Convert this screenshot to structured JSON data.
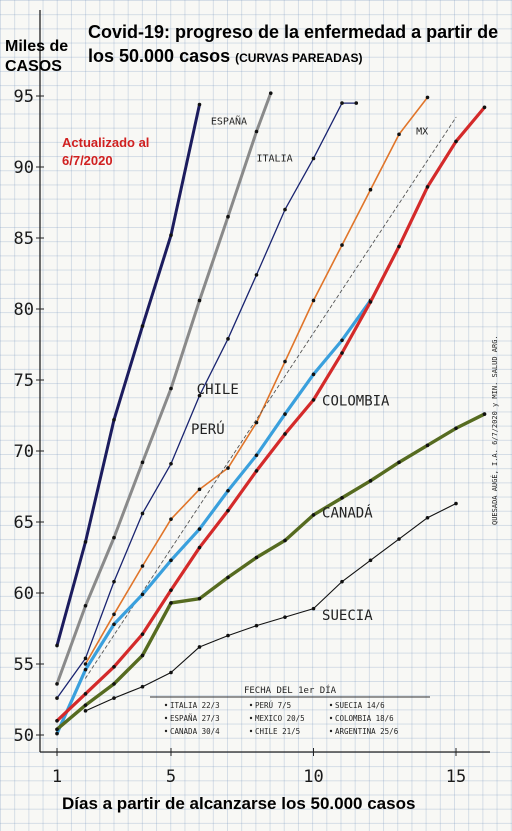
{
  "title": {
    "main": "Covid-19: progreso de la enfermedad a partir de los 50.000 casos",
    "note": "(CURVAS PAREADAS)"
  },
  "y_axis_label": "Miles de CASOS",
  "x_axis_label": "Días a partir de alcanzarse los 50.000 casos",
  "updated": "Actualizado al 6/7/2020",
  "author_note": "QUESADA AUGÉ, I.A. 6/7/2020 y MIN. SALUD ARG.",
  "legend_title": "FECHA DEL 1er DÍA",
  "legend_entries": [
    "ITALIA 22/3",
    "PERÚ 7/5",
    "SUECIA 14/6",
    "ESPAÑA 27/3",
    "MEXICO 20/5",
    "COLOMBIA 18/6",
    "CANADA 30/4",
    "CHILE 21/5",
    "ARGENTINA 25/6"
  ],
  "chart_data": {
    "type": "line",
    "title": "Covid-19: progreso de la enfermedad a partir de los 50.000 casos",
    "xlabel": "Días a partir de alcanzarse los 50.000 casos",
    "ylabel": "Miles de CASOS",
    "x_ticks": [
      1,
      5,
      10,
      15
    ],
    "y_ticks": [
      50,
      55,
      60,
      65,
      70,
      75,
      80,
      85,
      90,
      95
    ],
    "xlim": [
      1,
      16
    ],
    "ylim": [
      50,
      95
    ],
    "grid": true,
    "series": [
      {
        "name": "ESPAÑA",
        "color": "#1c1c5e",
        "x": [
          1,
          2,
          3,
          4,
          5,
          6
        ],
        "y": [
          56.3,
          63.6,
          72.2,
          78.8,
          85.2,
          94.4
        ]
      },
      {
        "name": "ITALIA",
        "color": "#8a8a8a",
        "x": [
          1,
          2,
          3,
          4,
          5,
          6,
          7,
          8,
          8.5
        ],
        "y": [
          53.6,
          59.1,
          63.9,
          69.2,
          74.4,
          80.6,
          86.5,
          92.5,
          95.2
        ]
      },
      {
        "name": "CHILE",
        "color": "#1a2470",
        "x": [
          1,
          2,
          3,
          4,
          5,
          6,
          7,
          8,
          9,
          10,
          11,
          11.5
        ],
        "y": [
          52.6,
          55.4,
          60.8,
          65.6,
          69.1,
          73.9,
          77.9,
          82.4,
          87.0,
          90.6,
          94.5,
          94.5
        ]
      },
      {
        "name": "PERÚ",
        "color": "#e0752a",
        "x": [
          2,
          3,
          4,
          5,
          6,
          7,
          8,
          9,
          10,
          11,
          12,
          13,
          14
        ],
        "y": [
          55.0,
          58.5,
          61.9,
          65.2,
          67.3,
          68.8,
          72.0,
          76.3,
          80.6,
          84.5,
          88.4,
          92.3,
          94.9
        ]
      },
      {
        "name": "MX",
        "color": "#555555",
        "dashed": true,
        "x": [
          2,
          15
        ],
        "y": [
          54.0,
          93.5
        ]
      },
      {
        "name": "COLOMBIA",
        "color": "#3aa0dd",
        "x": [
          1,
          2,
          3,
          4,
          5,
          6,
          7,
          8,
          9,
          10,
          11,
          12
        ],
        "y": [
          50.1,
          54.6,
          57.8,
          59.9,
          62.3,
          64.5,
          67.2,
          69.7,
          72.6,
          75.4,
          77.8,
          80.6
        ]
      },
      {
        "name": "ARGENTINA",
        "color": "#d42a2a",
        "x": [
          1,
          2,
          3,
          4,
          5,
          6,
          7,
          8,
          9,
          10,
          11,
          12,
          13,
          14,
          15,
          16
        ],
        "y": [
          51.0,
          52.9,
          54.8,
          57.1,
          60.2,
          63.2,
          65.8,
          68.6,
          71.2,
          73.6,
          76.9,
          80.5,
          84.4,
          88.6,
          91.8,
          94.2
        ]
      },
      {
        "name": "CANADÁ",
        "color": "#566b20",
        "x": [
          1,
          2,
          3,
          4,
          5,
          6,
          7,
          8,
          9,
          10,
          11,
          12,
          13,
          14,
          15,
          16
        ],
        "y": [
          50.4,
          52.1,
          53.6,
          55.6,
          59.3,
          59.6,
          61.1,
          62.5,
          63.7,
          65.5,
          66.7,
          67.9,
          69.2,
          70.4,
          71.6,
          72.6
        ]
      },
      {
        "name": "SUECIA",
        "color": "#111111",
        "x": [
          2,
          3,
          4,
          5,
          6,
          7,
          8,
          9,
          10,
          11,
          12,
          13,
          14,
          15
        ],
        "y": [
          51.7,
          52.6,
          53.4,
          54.4,
          56.2,
          57.0,
          57.7,
          58.3,
          58.9,
          60.8,
          62.3,
          63.8,
          65.3,
          66.3
        ]
      }
    ],
    "labels": [
      {
        "text": "ESPAÑA",
        "x": 6.4,
        "y": 93.0
      },
      {
        "text": "ITALIA",
        "x": 8.0,
        "y": 90.4
      },
      {
        "text": "MX",
        "x": 13.6,
        "y": 92.3
      },
      {
        "text": "CHILE",
        "x": 5.9,
        "y": 74.0
      },
      {
        "text": "PERÚ",
        "x": 5.7,
        "y": 71.2
      },
      {
        "text": "COLOMBIA",
        "x": 10.3,
        "y": 73.2
      },
      {
        "text": "CANADÁ",
        "x": 10.3,
        "y": 65.3
      },
      {
        "text": "SUECIA",
        "x": 10.3,
        "y": 58.1
      }
    ]
  }
}
